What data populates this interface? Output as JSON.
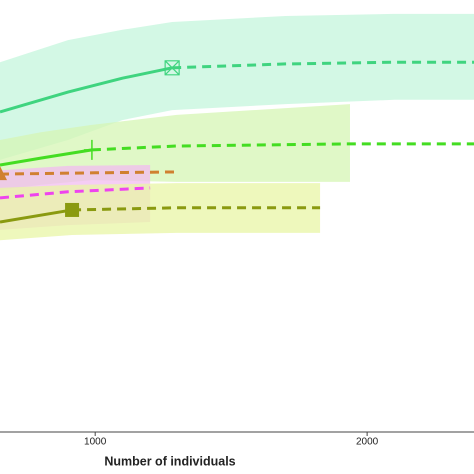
{
  "chart_data": {
    "type": "line",
    "x_label": "Number of individuals",
    "xlim": [
      650,
      2393
    ],
    "xticks": [
      1000,
      2000
    ],
    "ylim": [
      0,
      100
    ],
    "series": [
      {
        "color": "#3fd47f",
        "band_color": "#c4f5dc",
        "marker": "boxx",
        "marker_index": 3,
        "observed_points": 4,
        "x": [
          650,
          900,
          1100,
          1283,
          1700,
          2100,
          2393
        ],
        "values": [
          74.1,
          78.7,
          81.9,
          84.3,
          85.2,
          85.6,
          85.6
        ],
        "upper": [
          85.6,
          90.7,
          93.1,
          94.9,
          96.3,
          96.8,
          96.8
        ],
        "lower": [
          63.0,
          67.6,
          72.2,
          74.5,
          75.9,
          76.9,
          76.9
        ]
      },
      {
        "color": "#44dd22",
        "band_color": "#d6f5b4",
        "marker": "plus",
        "marker_index": 2,
        "observed_points": 3,
        "x": [
          650,
          800,
          988,
          1300,
          1937,
          2393
        ],
        "values": [
          61.8,
          63.4,
          65.3,
          66.2,
          66.7,
          66.7
        ],
        "upper": [
          67.6,
          69.4,
          71.1,
          73.4,
          75.9,
          null
        ],
        "lower": [
          56.0,
          57.2,
          58.3,
          57.9,
          57.9,
          null
        ]
      },
      {
        "color": "#d08030",
        "marker": "triangle",
        "marker_index": 0,
        "observed_points": 1,
        "x": [
          650,
          1000,
          1294
        ],
        "values": [
          59.7,
          60.0,
          60.2
        ]
      },
      {
        "color": "#ee44ee",
        "band_color": "#f2bcf0",
        "observed_points": 1,
        "x": [
          650,
          900,
          1202
        ],
        "values": [
          54.2,
          55.6,
          56.5
        ],
        "upper": [
          60.6,
          61.6,
          61.8
        ],
        "lower": [
          46.8,
          47.9,
          48.6
        ]
      },
      {
        "color": "#8a9a10",
        "band_color": "#e8f5a6",
        "marker": "square",
        "marker_index": 1,
        "observed_points": 2,
        "x": [
          650,
          915,
          1300,
          1827
        ],
        "values": [
          48.6,
          51.4,
          51.9,
          51.9
        ],
        "upper": [
          56.5,
          57.2,
          57.6,
          57.6
        ],
        "lower": [
          44.4,
          45.6,
          46.1,
          46.1
        ]
      }
    ]
  }
}
